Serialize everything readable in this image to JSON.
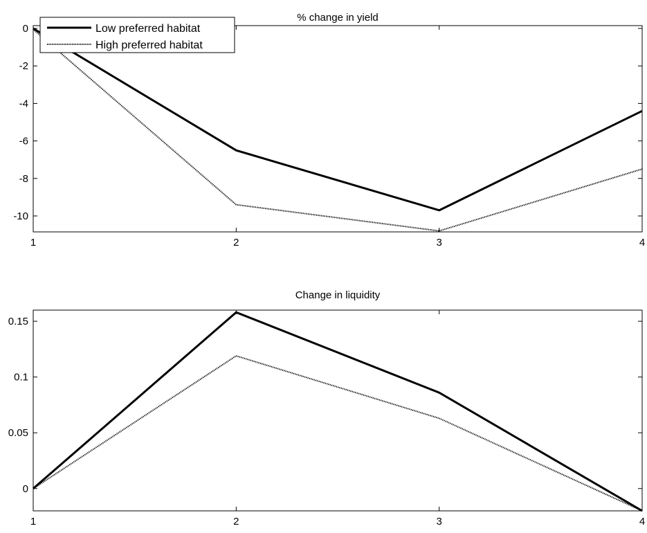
{
  "chart_data": [
    {
      "type": "line",
      "title": "% change in yield",
      "x": [
        1,
        2,
        3,
        4
      ],
      "xlim": [
        1,
        4
      ],
      "ylim": [
        -10.85,
        0.15
      ],
      "xticks": [
        1,
        2,
        3,
        4
      ],
      "xtick_labels": [
        "1",
        "2",
        "3",
        "4"
      ],
      "yticks": [
        0,
        -2,
        -4,
        -6,
        -8,
        -10
      ],
      "ytick_labels": [
        "0",
        "-2",
        "-4",
        "-6",
        "-8",
        "-10"
      ],
      "grid": false,
      "legend": {
        "placement": "top-left",
        "entries": [
          "Low preferred habitat",
          "High preferred habitat"
        ]
      },
      "series": [
        {
          "name": "Low preferred habitat",
          "style": "solid",
          "color": "#000000",
          "values": [
            0,
            -6.5,
            -9.7,
            -4.4
          ]
        },
        {
          "name": "High preferred habitat",
          "style": "dotted",
          "color": "#000000",
          "values": [
            -0.05,
            -9.4,
            -10.8,
            -7.5
          ]
        }
      ]
    },
    {
      "type": "line",
      "title": "Change in liquidity",
      "x": [
        1,
        2,
        3,
        4
      ],
      "xlim": [
        1,
        4
      ],
      "ylim": [
        -0.02,
        0.16
      ],
      "xticks": [
        1,
        2,
        3,
        4
      ],
      "xtick_labels": [
        "1",
        "2",
        "3",
        "4"
      ],
      "yticks": [
        0,
        0.05,
        0.1,
        0.15
      ],
      "ytick_labels": [
        "0",
        "0.05",
        "0.1",
        "0.15"
      ],
      "grid": false,
      "series": [
        {
          "name": "Low preferred habitat",
          "style": "solid",
          "color": "#000000",
          "values": [
            0,
            0.158,
            0.086,
            -0.02
          ]
        },
        {
          "name": "High preferred habitat",
          "style": "dotted",
          "color": "#000000",
          "values": [
            0,
            0.119,
            0.063,
            -0.02
          ]
        }
      ]
    }
  ]
}
